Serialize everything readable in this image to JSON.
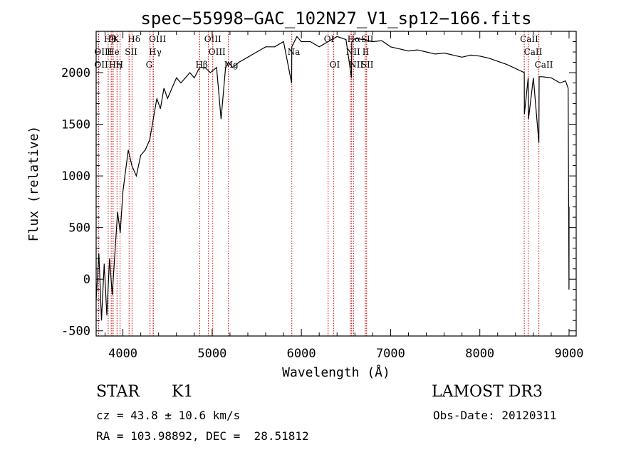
{
  "chart_data": {
    "type": "line",
    "title": "spec−55998−GAC_102N27_V1_sp12−166.fits",
    "xlabel": "Wavelength (Å)",
    "ylabel": "Flux (relative)",
    "xlim": [
      3700,
      9080
    ],
    "ylim": [
      -550,
      2400
    ],
    "x_ticks": [
      4000,
      5000,
      6000,
      7000,
      8000,
      9000
    ],
    "y_ticks": [
      -500,
      0,
      500,
      1000,
      1500,
      2000
    ],
    "series": [
      {
        "name": "flux",
        "x": [
          3700,
          3730,
          3760,
          3790,
          3820,
          3850,
          3880,
          3910,
          3940,
          3970,
          4000,
          4030,
          4060,
          4100,
          4150,
          4200,
          4250,
          4300,
          4340,
          4380,
          4420,
          4460,
          4500,
          4550,
          4600,
          4650,
          4700,
          4750,
          4800,
          4860,
          4920,
          4980,
          5050,
          5100,
          5150,
          5183,
          5230,
          5300,
          5400,
          5500,
          5600,
          5700,
          5800,
          5890,
          5893,
          5950,
          6000,
          6100,
          6200,
          6300,
          6400,
          6500,
          6562,
          6565,
          6600,
          6700,
          6800,
          6900,
          7000,
          7100,
          7200,
          7300,
          7400,
          7500,
          7600,
          7700,
          7800,
          7900,
          8000,
          8100,
          8200,
          8300,
          8400,
          8498,
          8500,
          8542,
          8545,
          8600,
          8662,
          8665,
          8700,
          8800,
          8900,
          8960,
          8990,
          8999,
          9000
        ],
        "y": [
          -200,
          250,
          -400,
          150,
          -350,
          200,
          -150,
          250,
          650,
          450,
          850,
          1050,
          1250,
          1100,
          1000,
          1200,
          1250,
          1350,
          1550,
          1750,
          1650,
          1850,
          1750,
          1850,
          1950,
          1900,
          1950,
          2000,
          1950,
          2050,
          2050,
          2000,
          2050,
          1550,
          2050,
          2100,
          2050,
          2100,
          2150,
          2200,
          2250,
          2250,
          2300,
          1900,
          2250,
          2350,
          2300,
          2300,
          2250,
          2300,
          2350,
          2320,
          1950,
          2300,
          2330,
          2320,
          2300,
          2310,
          2250,
          2230,
          2210,
          2220,
          2200,
          2180,
          2190,
          2170,
          2150,
          2170,
          2160,
          2140,
          2110,
          2080,
          2040,
          2000,
          1600,
          1950,
          1550,
          1950,
          1320,
          1960,
          1960,
          1950,
          1900,
          1920,
          1850,
          -100,
          700
        ]
      }
    ],
    "line_markers": [
      {
        "wl": 3835,
        "row": 0,
        "label": "Hθ"
      },
      {
        "wl": 3889,
        "row": 0,
        "label": "ζ"
      },
      {
        "wl": 3934,
        "row": 0,
        "label": "K"
      },
      {
        "wl": 4102,
        "row": 0,
        "label": "Hδ"
      },
      {
        "wl": 4340,
        "row": 0,
        "label": "OIII"
      },
      {
        "wl": 4959,
        "row": 0,
        "label": "OIII"
      },
      {
        "wl": 6300,
        "row": 0,
        "label": "OI"
      },
      {
        "wl": 6563,
        "row": 0,
        "label": "Hα"
      },
      {
        "wl": 6716,
        "row": 0,
        "label": "SII"
      },
      {
        "wl": 8498,
        "row": 0,
        "label": "CaII"
      },
      {
        "wl": 3727,
        "row": 1,
        "label": "OII"
      },
      {
        "wl": 3869,
        "row": 1,
        "label": "He"
      },
      {
        "wl": 3889,
        "row": 1,
        "label": "I"
      },
      {
        "wl": 4069,
        "row": 1,
        "label": "SII"
      },
      {
        "wl": 4340,
        "row": 1,
        "label": "Hγ"
      },
      {
        "wl": 5007,
        "row": 1,
        "label": "OIII"
      },
      {
        "wl": 5893,
        "row": 1,
        "label": "Na"
      },
      {
        "wl": 6548,
        "row": 1,
        "label": "NII"
      },
      {
        "wl": 6731,
        "row": 1,
        "label": "II"
      },
      {
        "wl": 8542,
        "row": 1,
        "label": "CaII"
      },
      {
        "wl": 3727,
        "row": 2,
        "label": "OII"
      },
      {
        "wl": 3889,
        "row": 2,
        "label": "Hη"
      },
      {
        "wl": 3968,
        "row": 2,
        "label": "H"
      },
      {
        "wl": 4304,
        "row": 2,
        "label": "G"
      },
      {
        "wl": 4861,
        "row": 2,
        "label": "Hβ"
      },
      {
        "wl": 5183,
        "row": 2,
        "label": "Mg"
      },
      {
        "wl": 6363,
        "row": 2,
        "label": "OI"
      },
      {
        "wl": 6584,
        "row": 2,
        "label": "NII"
      },
      {
        "wl": 6716,
        "row": 2,
        "label": "SII"
      },
      {
        "wl": 8662,
        "row": 2,
        "label": "CaII"
      }
    ],
    "marker_color": "#cc0000"
  },
  "info": {
    "object_class": "STAR",
    "subclass": "K1",
    "survey": "LAMOST DR3",
    "cz": "cz = 43.8 ± 10.6 km/s",
    "obs_date": "Obs-Date: 20120311",
    "coords": "RA = 103.98892, DEC =  28.51812"
  }
}
